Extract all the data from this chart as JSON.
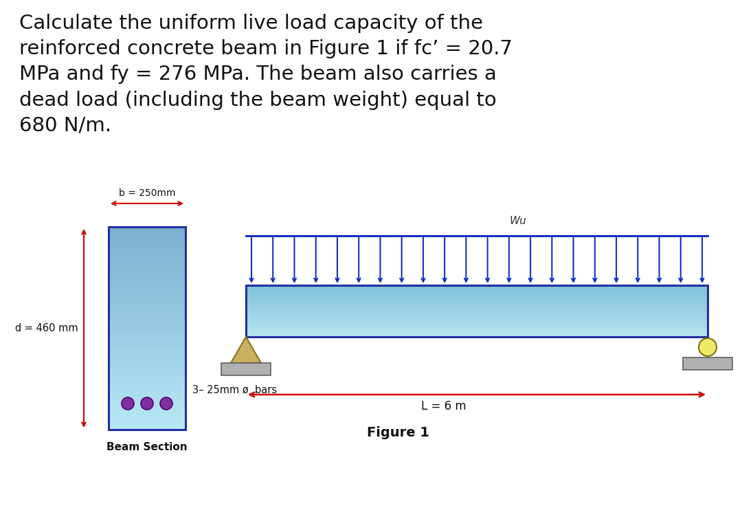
{
  "title_text": "Calculate the uniform live load capacity of the\nreinforced concrete beam in Figure 1 if fc’ = 20.7\nMPa and fy = 276 MPa. The beam also carries a\ndead load (including the beam weight) equal to\n680 N/m.",
  "b_label": "b = 250mm",
  "d_label": "d = 460 mm",
  "bars_label": "3– 25mm ø  bars",
  "beam_section_label": "Beam Section",
  "wu_label": "Wu",
  "L_label": "L = 6 m",
  "figure_label": "Figure 1",
  "beam_border_color": "#2030a0",
  "arrow_color": "#1530c0",
  "dim_color": "#cc0000",
  "bar_color": "#8030a0",
  "support_color": "#c8b060",
  "support_edge": "#907020",
  "roller_color": "#f0e868",
  "roller_edge": "#807010",
  "base_color": "#b0b0b0",
  "base_edge": "#606060",
  "background": "#ffffff"
}
